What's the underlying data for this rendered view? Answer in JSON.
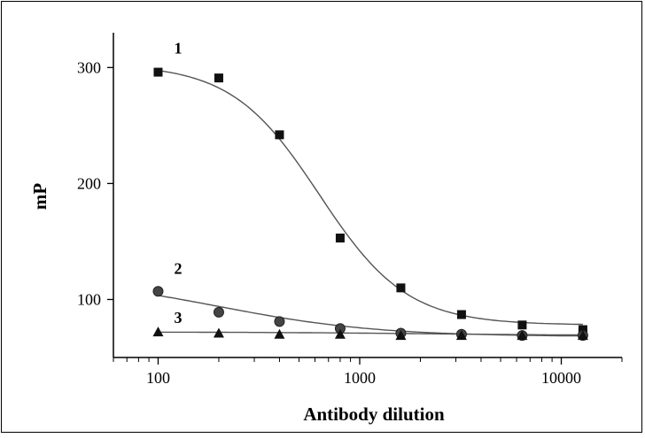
{
  "chart_data": {
    "type": "scatter",
    "title": "",
    "xlabel": "Antibody dilution",
    "ylabel": "mP",
    "xscale": "log",
    "xlim": [
      60,
      20000
    ],
    "ylim": [
      50,
      330
    ],
    "xticks": [
      100,
      1000,
      10000
    ],
    "xtick_labels": [
      "100",
      "1000",
      "10000"
    ],
    "yticks": [
      100,
      200,
      300
    ],
    "ytick_labels": [
      "100",
      "200",
      "300"
    ],
    "grid": false,
    "legend": "none",
    "series": [
      {
        "name": "1",
        "marker": "square",
        "x": [
          100,
          200,
          400,
          800,
          1600,
          3200,
          6400,
          12800,
          12800
        ],
        "y": [
          296,
          291,
          242,
          153,
          110,
          87,
          78,
          74,
          71
        ],
        "fit": {
          "top": 303,
          "bottom": 78,
          "ec50": 630,
          "hill": 2.0
        }
      },
      {
        "name": "2",
        "marker": "circle",
        "x": [
          100,
          200,
          400,
          800,
          1600,
          3200,
          6400,
          12800
        ],
        "y": [
          107,
          89,
          81,
          75,
          71,
          70,
          69,
          69
        ],
        "fit": {
          "top": 120,
          "bottom": 68,
          "ec50": 200,
          "hill": 1.1
        }
      },
      {
        "name": "3",
        "marker": "triangle",
        "x": [
          100,
          200,
          400,
          800,
          1600,
          3200,
          6400,
          12800
        ],
        "y": [
          72,
          71,
          70,
          70,
          69,
          69,
          69,
          69
        ],
        "fit": {
          "top": 72,
          "bottom": 69,
          "ec50": 2000,
          "hill": 1.0
        }
      }
    ]
  }
}
